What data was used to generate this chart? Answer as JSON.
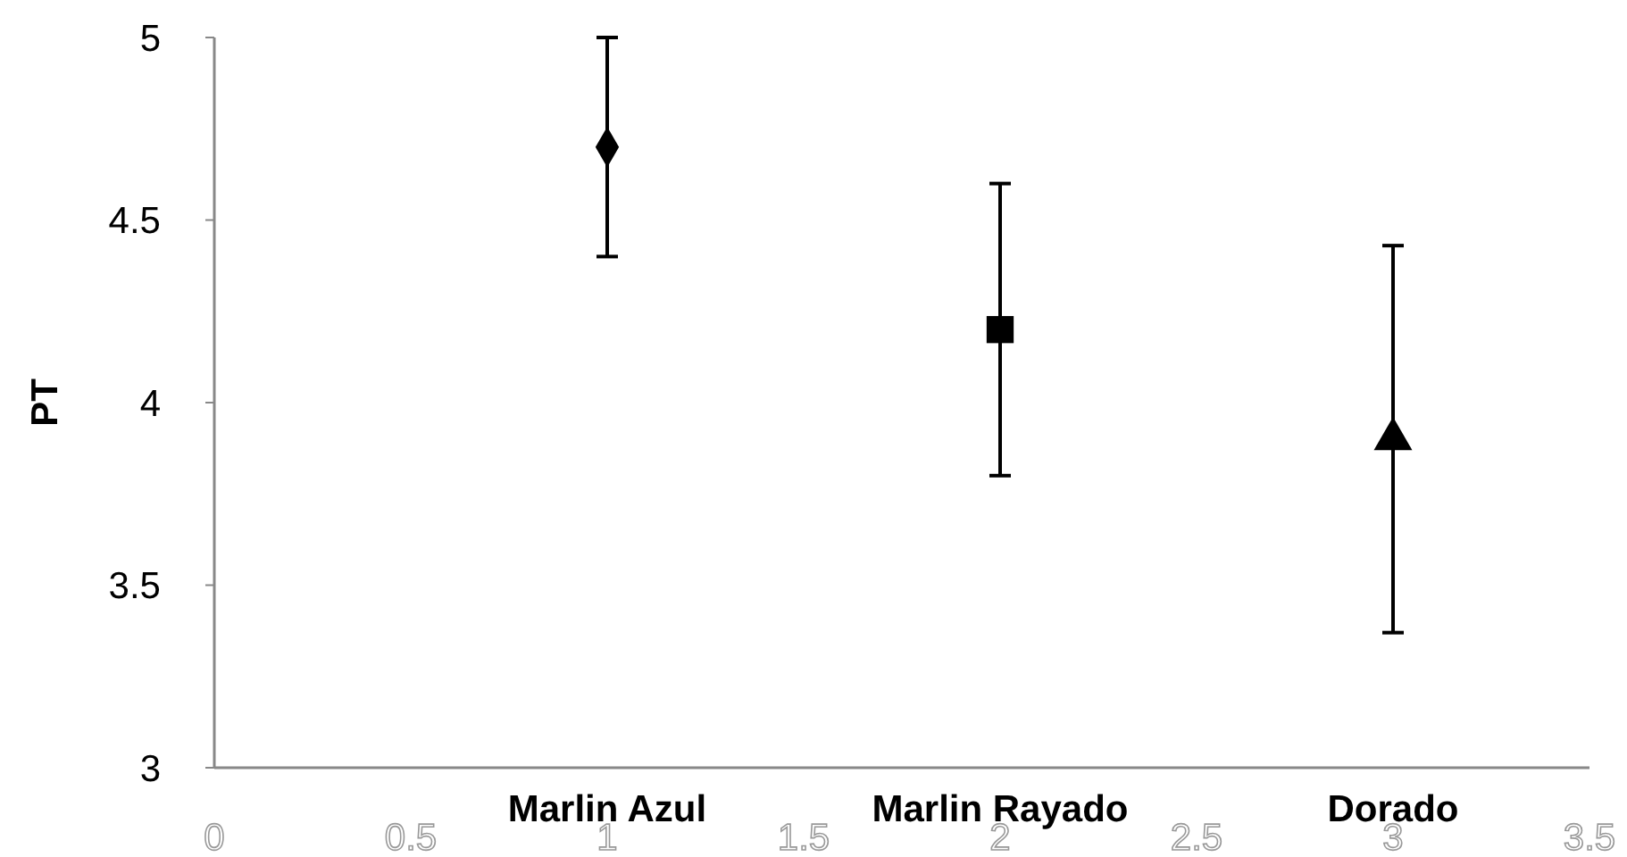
{
  "chart_data": {
    "type": "scatter",
    "ylabel": "PT",
    "xlim": [
      0,
      3.5
    ],
    "xticks": [
      0,
      0.5,
      1,
      1.5,
      2,
      2.5,
      3,
      3.5
    ],
    "ylim": [
      3,
      5
    ],
    "yticks": [
      3,
      3.5,
      4,
      4.5,
      5
    ],
    "grid": false,
    "annotations": [
      "Marlin Azul",
      "Marlin Rayado",
      "Dorado"
    ],
    "series": [
      {
        "color": "#000000",
        "marker": "diamond",
        "x": [
          1
        ],
        "values": [
          4.7
        ],
        "errors": [
          [
            4.4,
            5.0
          ]
        ]
      },
      {
        "color": "#000000",
        "marker": "square",
        "x": [
          2
        ],
        "values": [
          4.2
        ],
        "errors": [
          [
            3.8,
            4.6
          ]
        ]
      },
      {
        "color": "#000000",
        "marker": "triangle",
        "x": [
          3
        ],
        "values": [
          3.9
        ],
        "errors": [
          [
            3.37,
            4.43
          ]
        ]
      }
    ]
  }
}
